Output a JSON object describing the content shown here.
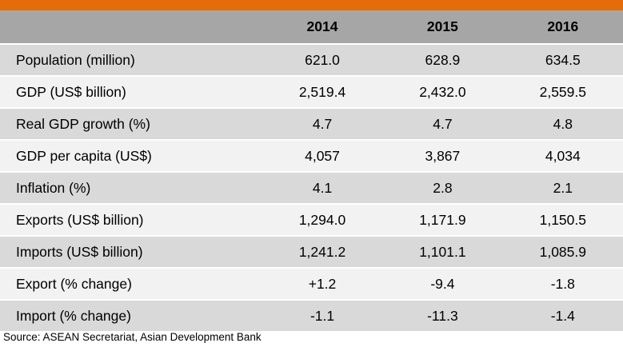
{
  "table": {
    "header": {
      "label": "",
      "years": [
        "2014",
        "2015",
        "2016"
      ]
    },
    "rows": [
      {
        "label": "Population (million)",
        "values": [
          "621.0",
          "628.9",
          "634.5"
        ]
      },
      {
        "label": "GDP (US$ billion)",
        "values": [
          "2,519.4",
          "2,432.0",
          "2,559.5"
        ]
      },
      {
        "label": "Real GDP growth (%)",
        "values": [
          "4.7",
          "4.7",
          "4.8"
        ]
      },
      {
        "label": "GDP per capita (US$)",
        "values": [
          "4,057",
          "3,867",
          "4,034"
        ]
      },
      {
        "label": "Inflation (%)",
        "values": [
          "4.1",
          "2.8",
          "2.1"
        ]
      },
      {
        "label": "Exports (US$ billion)",
        "values": [
          "1,294.0",
          "1,171.9",
          "1,150.5"
        ]
      },
      {
        "label": "Imports (US$ billion)",
        "values": [
          "1,241.2",
          "1,101.1",
          "1,085.9"
        ]
      },
      {
        "label": "Export (% change)",
        "values": [
          "+1.2",
          "-9.4",
          "-1.8"
        ]
      },
      {
        "label": "Import (% change)",
        "values": [
          "-1.1",
          "-11.3",
          "-1.4"
        ]
      }
    ]
  },
  "source": "Source: ASEAN Secretariat, Asian Development Bank",
  "colors": {
    "accent_bar": "#e46c0a",
    "header_bg": "#a6a6a6",
    "row_dark": "#d9d9d9",
    "row_light": "#f2f2f2"
  }
}
